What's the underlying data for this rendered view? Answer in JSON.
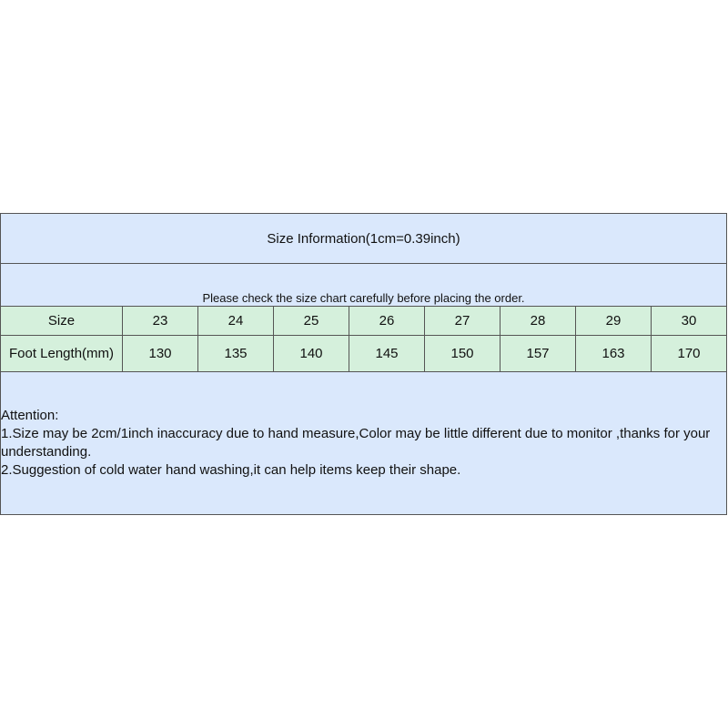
{
  "title": "Size Information(1cm=0.39inch)",
  "subtitle": "Please check the size chart carefully before placing the order.",
  "table": {
    "rows": [
      {
        "label": "Size",
        "values": [
          "23",
          "24",
          "25",
          "26",
          "27",
          "28",
          "29",
          "30"
        ]
      },
      {
        "label": "Foot Length(mm)",
        "values": [
          "130",
          "135",
          "140",
          "145",
          "150",
          "157",
          "163",
          "170"
        ]
      }
    ]
  },
  "notes": {
    "heading": "Attention:",
    "lines": [
      "1.Size may be 2cm/1inch inaccuracy due to hand measure,Color may be little different due to monitor ,thanks for your understanding.",
      "2.Suggestion of cold water hand washing,it can help items keep their shape."
    ]
  },
  "colors": {
    "header_bg": "#dae8fc",
    "table_bg": "#d5f0dc",
    "border": "#555555"
  }
}
